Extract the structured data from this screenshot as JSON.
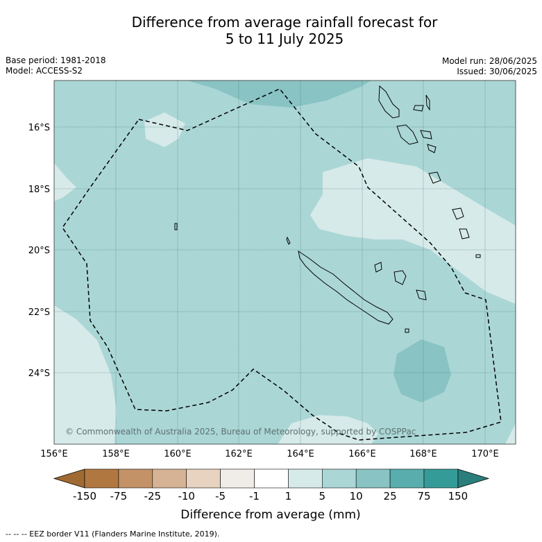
{
  "title_line1": "Difference from average rainfall forecast for",
  "title_line2": "5 to 11 July 2025",
  "base_period": "Base period: 1981-2018",
  "model": "Model: ACCESS-S2",
  "model_run": "Model run: 28/06/2025",
  "issued": "Issued: 30/06/2025",
  "copyright": "© Commonwealth of Australia 2025, Bureau of Meteorology, supported by COSPPac",
  "lat_labels": [
    "16°S",
    "18°S",
    "20°S",
    "22°S",
    "24°S"
  ],
  "lon_labels": [
    "156°E",
    "158°E",
    "160°E",
    "162°E",
    "164°E",
    "166°E",
    "168°E",
    "170°E"
  ],
  "colorbar": {
    "title": "Difference from average (mm)",
    "tick_labels": [
      "-150",
      "-75",
      "-25",
      "-10",
      "-5",
      "-1",
      "1",
      "5",
      "10",
      "25",
      "75",
      "150"
    ],
    "colors": [
      "#a06a33",
      "#b07840",
      "#c39267",
      "#d5b394",
      "#e7d3bf",
      "#f0ece8",
      "#ffffff",
      "#d6eae9",
      "#abd6d6",
      "#89c3c3",
      "#5aadad",
      "#359b98",
      "#2a7f7c"
    ]
  },
  "footer": "--  --  -- EEZ border V11 (Flanders Marine Institute, 2019).",
  "field_colors": {
    "background": "#abd6d6",
    "lighter": "#d6eae9",
    "darker": "#89c3c3"
  }
}
